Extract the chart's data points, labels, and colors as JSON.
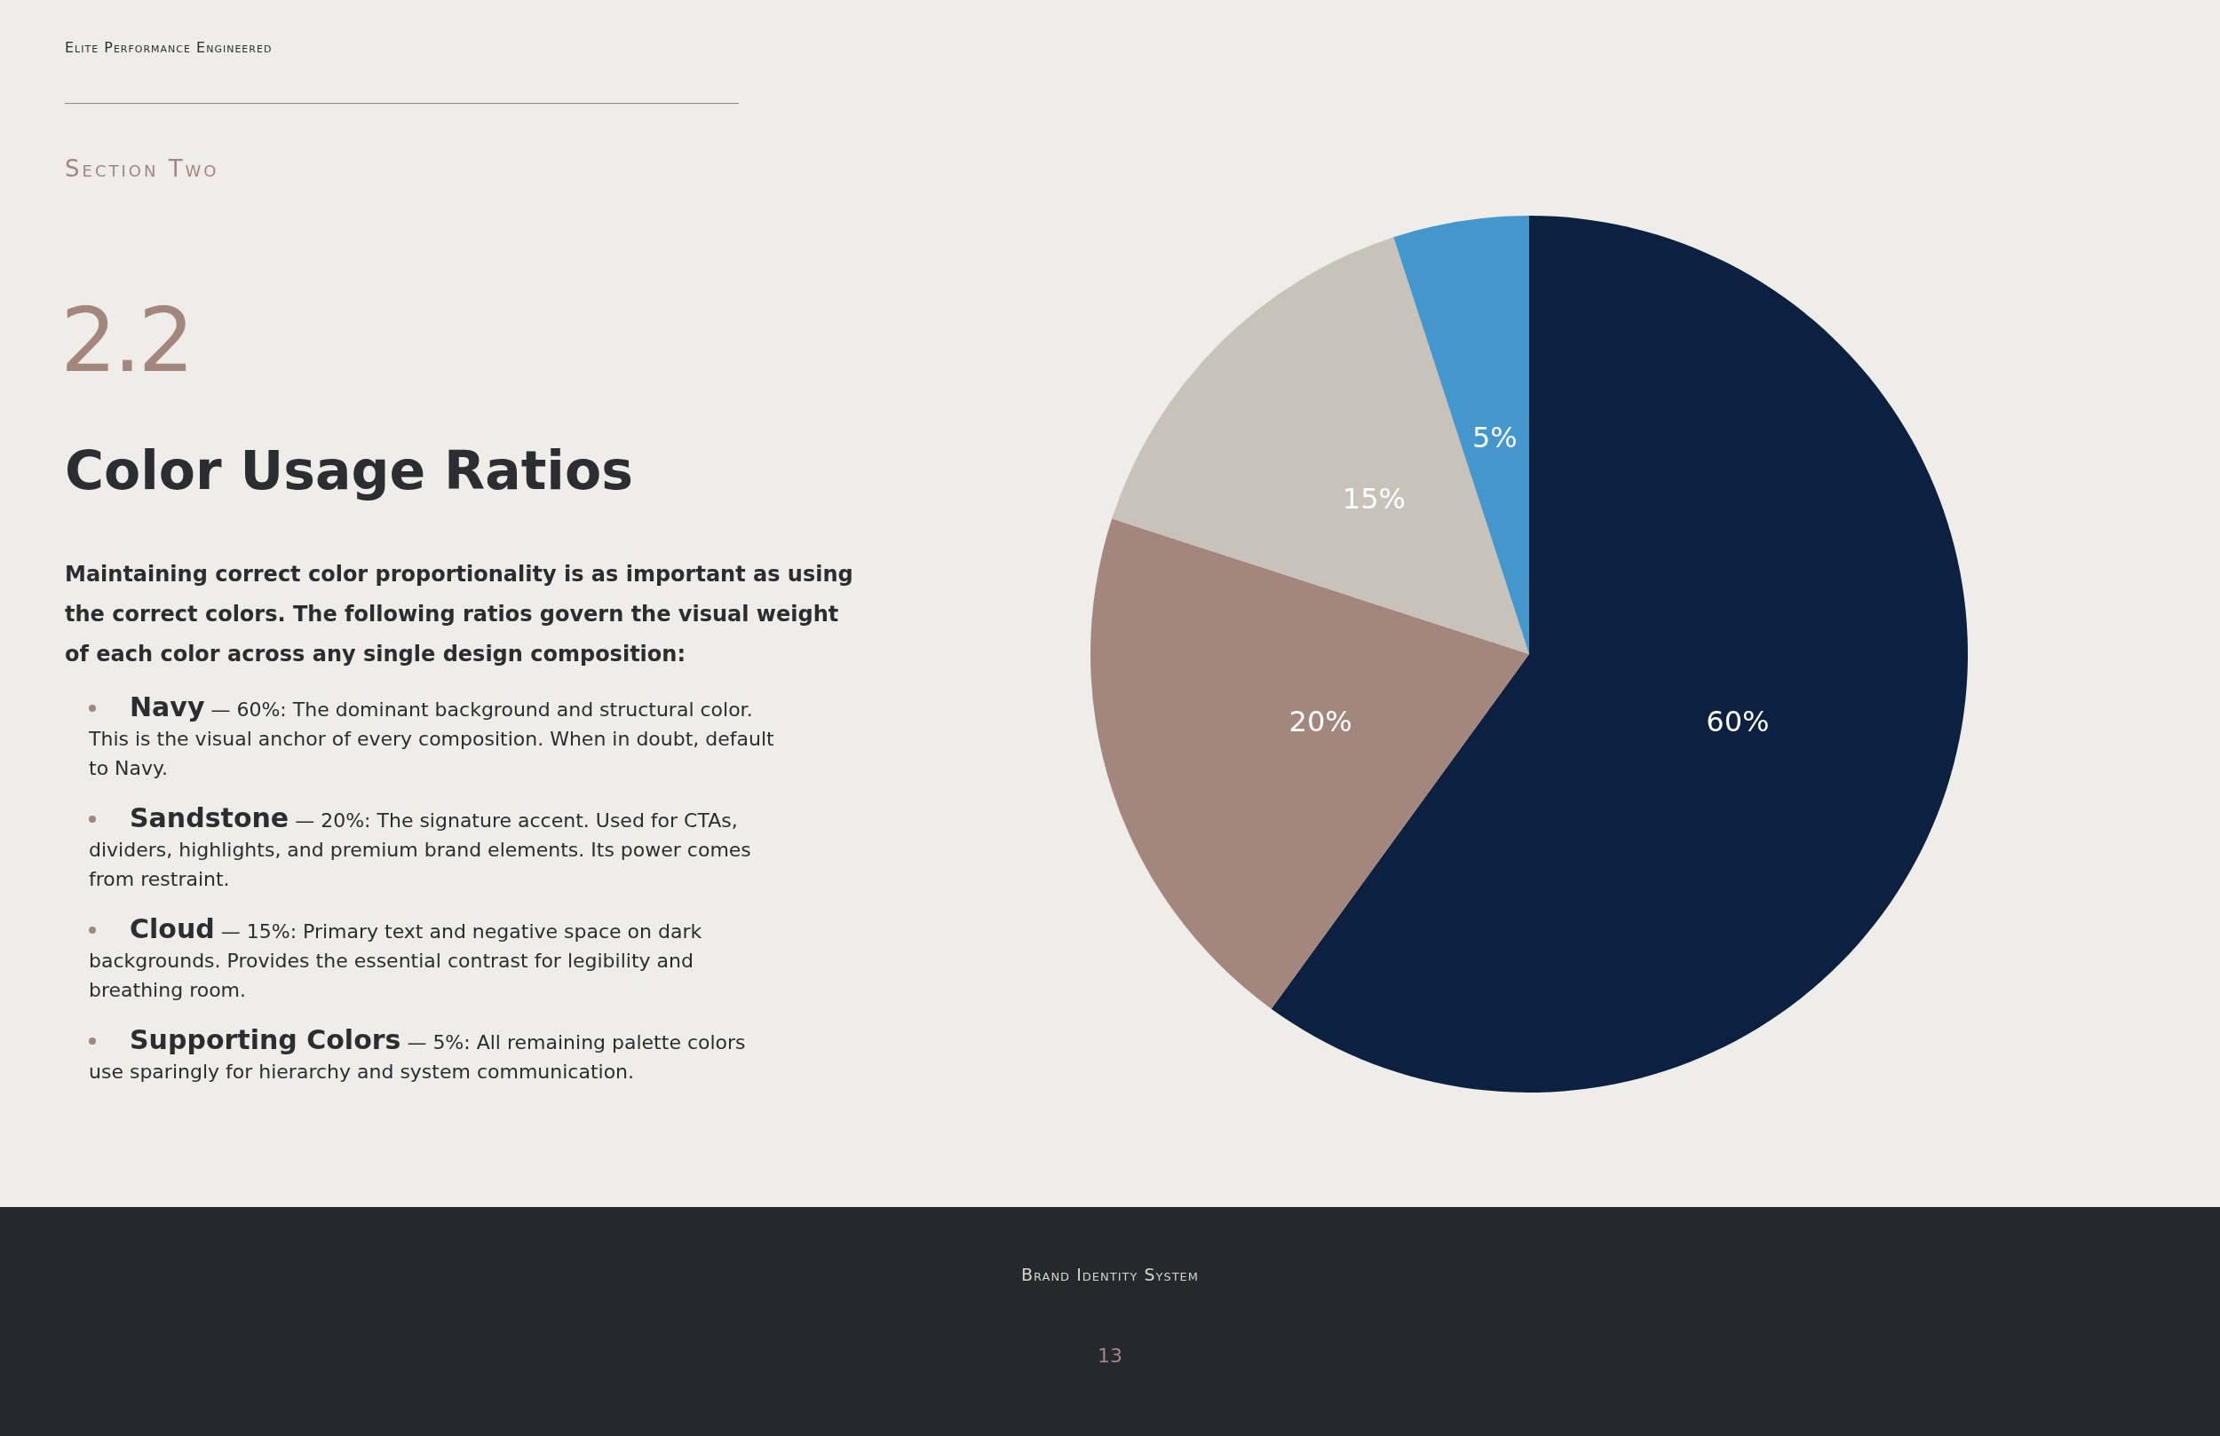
{
  "chart_data": {
    "type": "pie",
    "title": "Color Usage Ratios",
    "categories": [
      null,
      null,
      null,
      null
    ],
    "values": [
      60,
      20,
      15,
      5
    ],
    "colors": [
      "#0b213f",
      "#a3877f",
      "#c9c2bb",
      "#4397cd"
    ],
    "value_labels": [
      "60%",
      "20%",
      "15%",
      "5%"
    ],
    "legend": false,
    "annotations": [
      "Elite Performance Engineered",
      "Section Two",
      "2.2",
      "Maintaining correct color proportionality is as important as using the correct colors. The following ratios govern the visual weight of each color across any single design composition:",
      "Navy — 60%: The dominant background and structural color. This is the visual anchor of every composition. When in doubt, default to Navy.",
      "Sandstone — 20%: The signature accent. Used for CTAs, dividers, highlights, and premium brand elements. Its power comes from restraint.",
      "Cloud — 15%: Primary text and negative space on dark backgrounds. Provides the essential contrast for legibility and breathing room.",
      "Supporting Colors — 5%: All remaining palette colors use sparingly for hierarchy and system communication.",
      "Brand Identity System",
      "13"
    ]
  }
}
